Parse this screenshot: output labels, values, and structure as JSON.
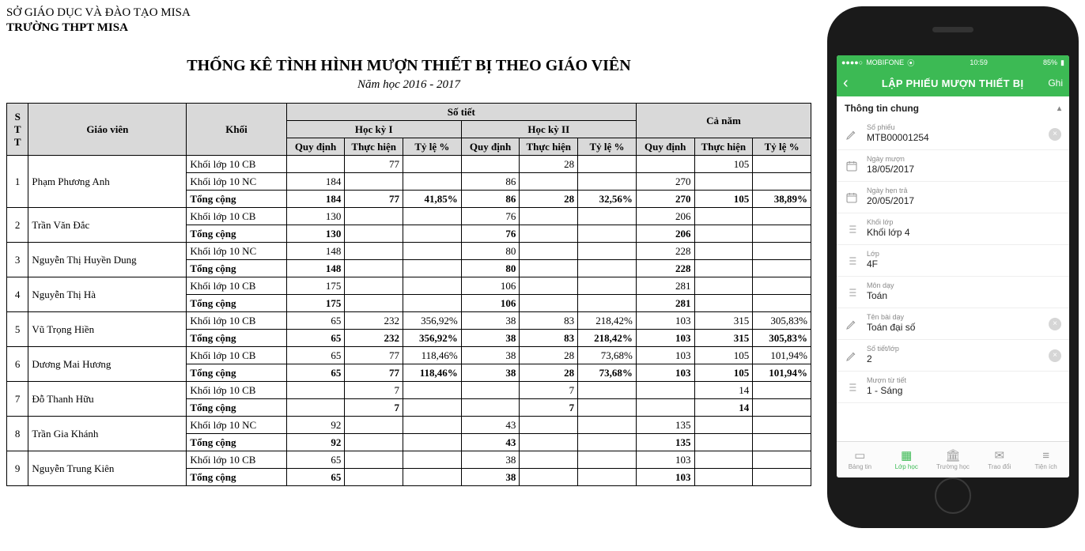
{
  "report": {
    "org": "SỞ GIÁO DỤC VÀ ĐÀO TẠO MISA",
    "school": "TRƯỜNG THPT MISA",
    "title": "THỐNG KÊ TÌNH HÌNH MƯỢN THIẾT BỊ THEO GIÁO VIÊN",
    "subtitle": "Năm học 2016 - 2017",
    "headers": {
      "stt": "S\nT\nT",
      "gv": "Giáo viên",
      "khoi": "Khối",
      "sotiet": "Số tiết",
      "hk1": "Học kỳ I",
      "hk2": "Học kỳ II",
      "canam": "Cả năm",
      "qd": "Quy định",
      "th": "Thực hiện",
      "tl": "Tỷ lệ %"
    },
    "tong_cong_label": "Tổng cộng",
    "teachers": [
      {
        "stt": "1",
        "name": "Phạm Phương Anh",
        "rows": [
          {
            "khoi": "Khối lớp 10 CB",
            "hk1_qd": "",
            "hk1_th": "77",
            "hk1_tl": "",
            "hk2_qd": "",
            "hk2_th": "28",
            "hk2_tl": "",
            "cn_qd": "",
            "cn_th": "105",
            "cn_tl": ""
          },
          {
            "khoi": "Khối lớp 10 NC",
            "hk1_qd": "184",
            "hk1_th": "",
            "hk1_tl": "",
            "hk2_qd": "86",
            "hk2_th": "",
            "hk2_tl": "",
            "cn_qd": "270",
            "cn_th": "",
            "cn_tl": ""
          }
        ],
        "total": {
          "hk1_qd": "184",
          "hk1_th": "77",
          "hk1_tl": "41,85%",
          "hk2_qd": "86",
          "hk2_th": "28",
          "hk2_tl": "32,56%",
          "cn_qd": "270",
          "cn_th": "105",
          "cn_tl": "38,89%"
        }
      },
      {
        "stt": "2",
        "name": "Trần Văn Đắc",
        "rows": [
          {
            "khoi": "Khối lớp 10 CB",
            "hk1_qd": "130",
            "hk1_th": "",
            "hk1_tl": "",
            "hk2_qd": "76",
            "hk2_th": "",
            "hk2_tl": "",
            "cn_qd": "206",
            "cn_th": "",
            "cn_tl": ""
          }
        ],
        "total": {
          "hk1_qd": "130",
          "hk1_th": "",
          "hk1_tl": "",
          "hk2_qd": "76",
          "hk2_th": "",
          "hk2_tl": "",
          "cn_qd": "206",
          "cn_th": "",
          "cn_tl": ""
        }
      },
      {
        "stt": "3",
        "name": "Nguyễn Thị Huyền Dung",
        "rows": [
          {
            "khoi": "Khối lớp 10 NC",
            "hk1_qd": "148",
            "hk1_th": "",
            "hk1_tl": "",
            "hk2_qd": "80",
            "hk2_th": "",
            "hk2_tl": "",
            "cn_qd": "228",
            "cn_th": "",
            "cn_tl": ""
          }
        ],
        "total": {
          "hk1_qd": "148",
          "hk1_th": "",
          "hk1_tl": "",
          "hk2_qd": "80",
          "hk2_th": "",
          "hk2_tl": "",
          "cn_qd": "228",
          "cn_th": "",
          "cn_tl": ""
        }
      },
      {
        "stt": "4",
        "name": "Nguyễn Thị Hà",
        "rows": [
          {
            "khoi": "Khối lớp 10 CB",
            "hk1_qd": "175",
            "hk1_th": "",
            "hk1_tl": "",
            "hk2_qd": "106",
            "hk2_th": "",
            "hk2_tl": "",
            "cn_qd": "281",
            "cn_th": "",
            "cn_tl": ""
          }
        ],
        "total": {
          "hk1_qd": "175",
          "hk1_th": "",
          "hk1_tl": "",
          "hk2_qd": "106",
          "hk2_th": "",
          "hk2_tl": "",
          "cn_qd": "281",
          "cn_th": "",
          "cn_tl": ""
        }
      },
      {
        "stt": "5",
        "name": "Vũ Trọng Hiền",
        "rows": [
          {
            "khoi": "Khối lớp 10 CB",
            "hk1_qd": "65",
            "hk1_th": "232",
            "hk1_tl": "356,92%",
            "hk2_qd": "38",
            "hk2_th": "83",
            "hk2_tl": "218,42%",
            "cn_qd": "103",
            "cn_th": "315",
            "cn_tl": "305,83%"
          }
        ],
        "total": {
          "hk1_qd": "65",
          "hk1_th": "232",
          "hk1_tl": "356,92%",
          "hk2_qd": "38",
          "hk2_th": "83",
          "hk2_tl": "218,42%",
          "cn_qd": "103",
          "cn_th": "315",
          "cn_tl": "305,83%"
        }
      },
      {
        "stt": "6",
        "name": "Dương Mai Hương",
        "rows": [
          {
            "khoi": "Khối lớp 10 CB",
            "hk1_qd": "65",
            "hk1_th": "77",
            "hk1_tl": "118,46%",
            "hk2_qd": "38",
            "hk2_th": "28",
            "hk2_tl": "73,68%",
            "cn_qd": "103",
            "cn_th": "105",
            "cn_tl": "101,94%"
          }
        ],
        "total": {
          "hk1_qd": "65",
          "hk1_th": "77",
          "hk1_tl": "118,46%",
          "hk2_qd": "38",
          "hk2_th": "28",
          "hk2_tl": "73,68%",
          "cn_qd": "103",
          "cn_th": "105",
          "cn_tl": "101,94%"
        }
      },
      {
        "stt": "7",
        "name": "Đỗ Thanh Hữu",
        "rows": [
          {
            "khoi": "Khối lớp 10 CB",
            "hk1_qd": "",
            "hk1_th": "7",
            "hk1_tl": "",
            "hk2_qd": "",
            "hk2_th": "7",
            "hk2_tl": "",
            "cn_qd": "",
            "cn_th": "14",
            "cn_tl": ""
          }
        ],
        "total": {
          "hk1_qd": "",
          "hk1_th": "7",
          "hk1_tl": "",
          "hk2_qd": "",
          "hk2_th": "7",
          "hk2_tl": "",
          "cn_qd": "",
          "cn_th": "14",
          "cn_tl": ""
        }
      },
      {
        "stt": "8",
        "name": "Trần Gia Khánh",
        "rows": [
          {
            "khoi": "Khối lớp 10 NC",
            "hk1_qd": "92",
            "hk1_th": "",
            "hk1_tl": "",
            "hk2_qd": "43",
            "hk2_th": "",
            "hk2_tl": "",
            "cn_qd": "135",
            "cn_th": "",
            "cn_tl": ""
          }
        ],
        "total": {
          "hk1_qd": "92",
          "hk1_th": "",
          "hk1_tl": "",
          "hk2_qd": "43",
          "hk2_th": "",
          "hk2_tl": "",
          "cn_qd": "135",
          "cn_th": "",
          "cn_tl": ""
        }
      },
      {
        "stt": "9",
        "name": "Nguyễn Trung Kiên",
        "rows": [
          {
            "khoi": "Khối lớp 10 CB",
            "hk1_qd": "65",
            "hk1_th": "",
            "hk1_tl": "",
            "hk2_qd": "38",
            "hk2_th": "",
            "hk2_tl": "",
            "cn_qd": "103",
            "cn_th": "",
            "cn_tl": ""
          }
        ],
        "total": {
          "hk1_qd": "65",
          "hk1_th": "",
          "hk1_tl": "",
          "hk2_qd": "38",
          "hk2_th": "",
          "hk2_tl": "",
          "cn_qd": "103",
          "cn_th": "",
          "cn_tl": ""
        }
      }
    ]
  },
  "phone": {
    "status": {
      "carrier": "MOBIFONE",
      "signal": "●●●●○",
      "wifi": "⦿",
      "time": "10:59",
      "battery": "85%",
      "battery_icon": "▮"
    },
    "nav": {
      "back": "‹",
      "title": "LẬP PHIẾU MƯỢN THIẾT BỊ",
      "action": "Ghi"
    },
    "section_header": "Thông tin chung",
    "fields": [
      {
        "icon": "pencil",
        "label": "Số phiếu",
        "value": "MTB00001254",
        "clear": true
      },
      {
        "icon": "calendar",
        "label": "Ngày mượn",
        "value": "18/05/2017",
        "clear": false
      },
      {
        "icon": "calendar",
        "label": "Ngày hẹn trả",
        "value": "20/05/2017",
        "clear": false
      },
      {
        "icon": "list",
        "label": "Khối lớp",
        "value": "Khối lớp 4",
        "clear": false
      },
      {
        "icon": "list",
        "label": "Lớp",
        "value": "4F",
        "clear": false
      },
      {
        "icon": "list",
        "label": "Môn dạy",
        "value": "Toán",
        "clear": false
      },
      {
        "icon": "pencil",
        "label": "Tên bài dạy",
        "value": "Toán đại số",
        "clear": true
      },
      {
        "icon": "pencil",
        "label": "Số tiết/lớp",
        "value": "2",
        "clear": true
      },
      {
        "icon": "list",
        "label": "Mượn từ tiết",
        "value": "1 - Sáng",
        "clear": false
      }
    ],
    "tabs": [
      {
        "icon": "▭",
        "label": "Bảng tin",
        "active": false
      },
      {
        "icon": "▦",
        "label": "Lớp học",
        "active": true
      },
      {
        "icon": "🏛",
        "label": "Trường học",
        "active": false
      },
      {
        "icon": "✉",
        "label": "Trao đổi",
        "active": false
      },
      {
        "icon": "≡",
        "label": "Tiện ích",
        "active": false
      }
    ]
  }
}
